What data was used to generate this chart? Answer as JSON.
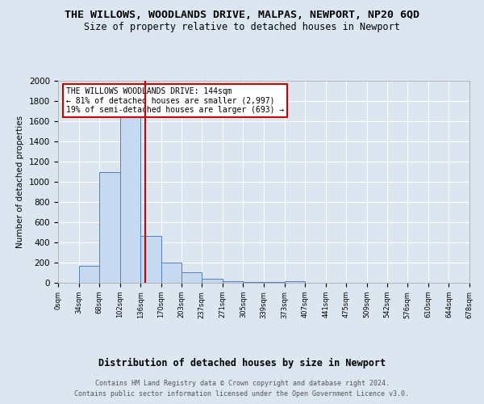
{
  "title": "THE WILLOWS, WOODLANDS DRIVE, MALPAS, NEWPORT, NP20 6QD",
  "subtitle": "Size of property relative to detached houses in Newport",
  "xlabel": "Distribution of detached houses by size in Newport",
  "ylabel": "Number of detached properties",
  "bar_color": "#c6d9f0",
  "bar_edge_color": "#4f81bd",
  "vline_color": "#cc0000",
  "vline_x": 144,
  "bin_edges": [
    0,
    34,
    68,
    102,
    136,
    170,
    203,
    237,
    271,
    305,
    339,
    373,
    407,
    441,
    475,
    509,
    542,
    576,
    610,
    644,
    678
  ],
  "bin_labels": [
    "0sqm",
    "34sqm",
    "68sqm",
    "102sqm",
    "136sqm",
    "170sqm",
    "203sqm",
    "237sqm",
    "271sqm",
    "305sqm",
    "339sqm",
    "373sqm",
    "407sqm",
    "441sqm",
    "475sqm",
    "509sqm",
    "542sqm",
    "576sqm",
    "610sqm",
    "644sqm",
    "678sqm"
  ],
  "bar_heights": [
    0,
    168,
    1095,
    1638,
    463,
    200,
    105,
    40,
    18,
    10,
    10,
    15,
    0,
    0,
    0,
    0,
    0,
    0,
    0,
    0
  ],
  "ylim": [
    0,
    2000
  ],
  "yticks": [
    0,
    200,
    400,
    600,
    800,
    1000,
    1200,
    1400,
    1600,
    1800,
    2000
  ],
  "annotation_text": "THE WILLOWS WOODLANDS DRIVE: 144sqm\n← 81% of detached houses are smaller (2,997)\n19% of semi-detached houses are larger (693) →",
  "annotation_box_color": "#ffffff",
  "annotation_box_edge": "#cc0000",
  "footer_line1": "Contains HM Land Registry data © Crown copyright and database right 2024.",
  "footer_line2": "Contains public sector information licensed under the Open Government Licence v3.0.",
  "background_color": "#dce6f1",
  "plot_bg_color": "#dce6f1",
  "grid_color": "#ffffff"
}
